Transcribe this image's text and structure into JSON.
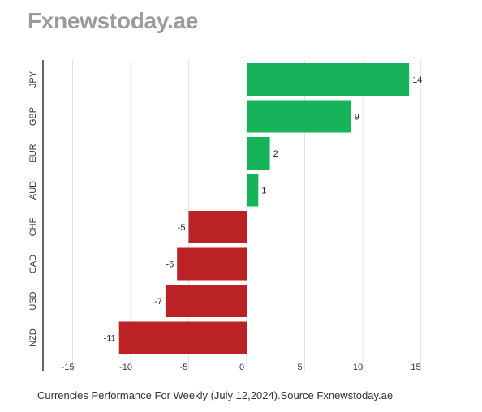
{
  "brand": "Fxnewstoday.ae",
  "caption": "Currencies Performance For Weekly (July 12,2024).Source Fxnewstoday.ae",
  "colors": {
    "positive": "#16b35a",
    "negative": "#bb2225",
    "grid": "#e3e3e3",
    "axis": "#333333"
  },
  "chart_data": {
    "type": "bar",
    "orientation": "horizontal",
    "categories": [
      "JPY",
      "GBP",
      "EUR",
      "AUD",
      "CHF",
      "CAD",
      "USD",
      "NZD"
    ],
    "values": [
      14,
      9,
      2,
      1,
      -5,
      -6,
      -7,
      -11
    ],
    "data_labels": [
      "14",
      "9",
      "2",
      "1",
      "-5",
      "-6",
      "-7",
      "-11"
    ],
    "xlim": [
      -15,
      15
    ],
    "xticks": [
      -15,
      -10,
      -5,
      0,
      5,
      10,
      15
    ],
    "xtick_labels": [
      "-15",
      "-10",
      "-5",
      "0",
      "5",
      "10",
      "15"
    ],
    "grid": true
  }
}
